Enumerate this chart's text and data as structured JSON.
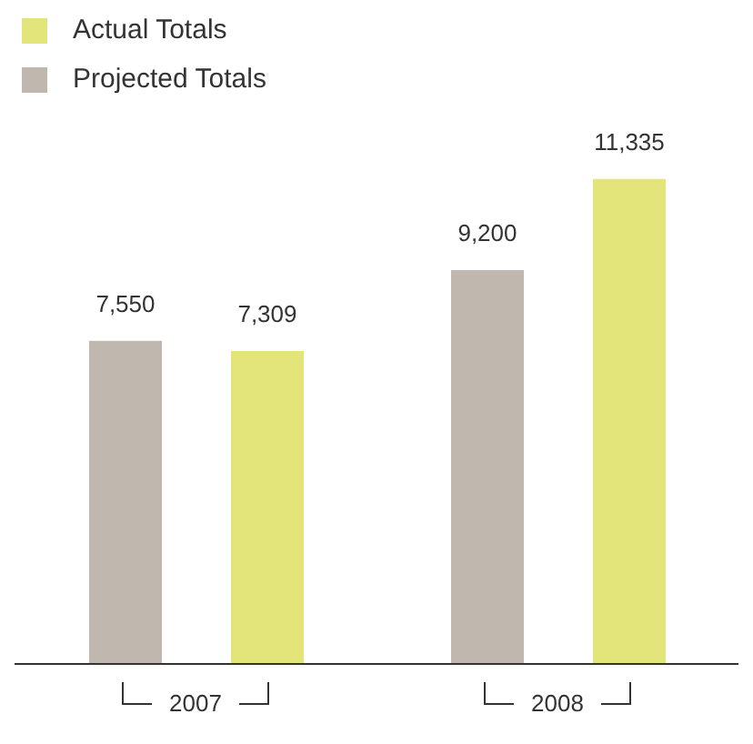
{
  "chart_data": {
    "type": "bar",
    "categories": [
      "2007",
      "2008"
    ],
    "series": [
      {
        "name": "Projected Totals",
        "color": "#c0b8ae",
        "values": [
          7550,
          9200
        ],
        "value_labels": [
          "7,550",
          "9,200"
        ]
      },
      {
        "name": "Actual Totals",
        "color": "#e3e57a",
        "values": [
          7309,
          11335
        ],
        "value_labels": [
          "7,309",
          "11,335"
        ]
      }
    ],
    "legend": "top left",
    "grid": false,
    "tick_labels": "x"
  }
}
